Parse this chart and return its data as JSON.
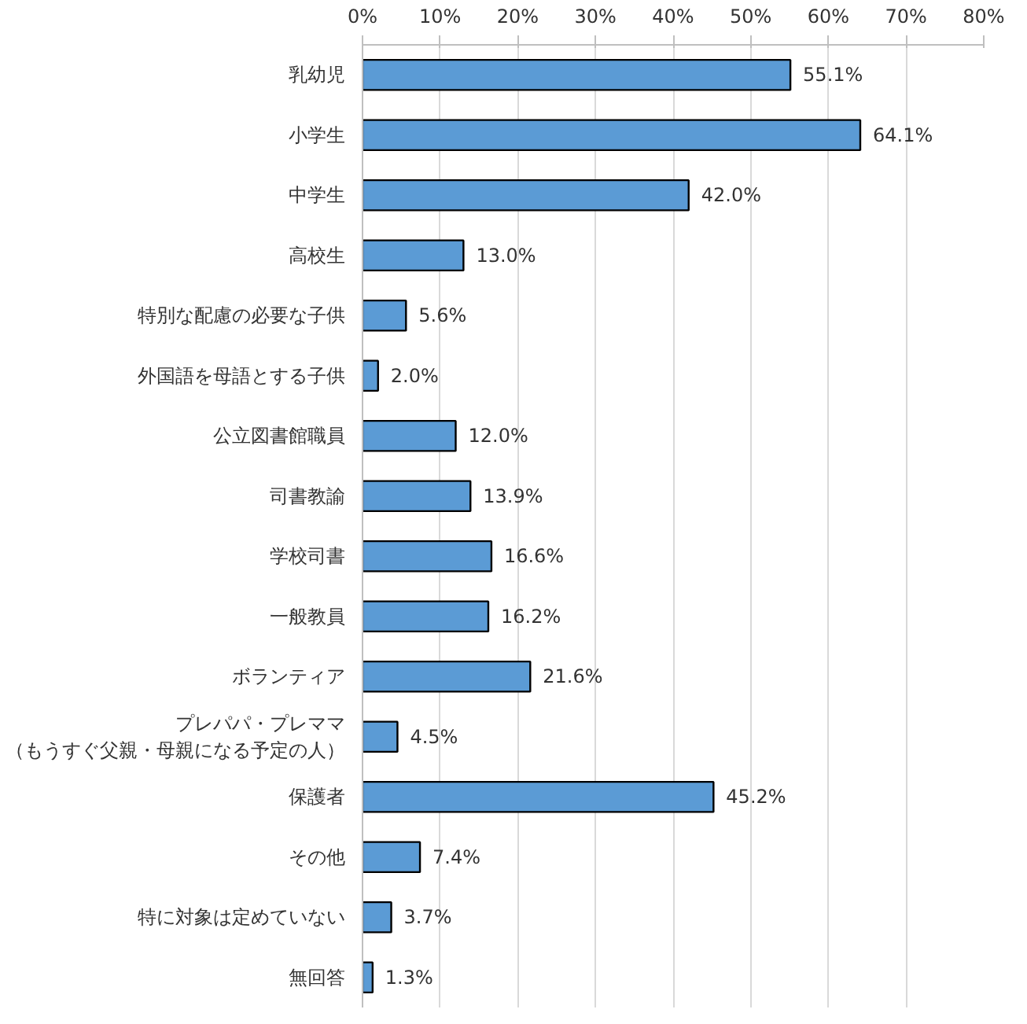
{
  "chart_data": {
    "type": "bar",
    "orientation": "horizontal",
    "categories": [
      "乳幼児",
      "小学生",
      "中学生",
      "高校生",
      "特別な配慮の必要な子供",
      "外国語を母語とする子供",
      "公立図書館職員",
      "司書教諭",
      "学校司書",
      "一般教員",
      "ボランティア",
      "プレパパ・プレママ（もうすぐ父親・母親になる予定の人）",
      "保護者",
      "その他",
      "特に対象は定めていない",
      "無回答"
    ],
    "values": [
      55.1,
      64.1,
      42.0,
      13.0,
      5.6,
      2.0,
      12.0,
      13.9,
      16.6,
      16.2,
      21.6,
      4.5,
      45.2,
      7.4,
      3.7,
      1.3
    ],
    "value_labels": [
      "55.1%",
      "64.1%",
      "42.0%",
      "13.0%",
      "5.6%",
      "2.0%",
      "12.0%",
      "13.9%",
      "16.6%",
      "16.2%",
      "21.6%",
      "4.5%",
      "45.2%",
      "7.4%",
      "3.7%",
      "1.3%"
    ],
    "color": "#5b9bd5",
    "xlim": [
      0,
      80
    ],
    "xticks": [
      {
        "value": 0,
        "label": "0%"
      },
      {
        "value": 10,
        "label": "10%"
      },
      {
        "value": 20,
        "label": "20%"
      },
      {
        "value": 30,
        "label": "30%"
      },
      {
        "value": 40,
        "label": "40%"
      },
      {
        "value": 50,
        "label": "50%"
      },
      {
        "value": 60,
        "label": "60%"
      },
      {
        "value": 70,
        "label": "70%"
      },
      {
        "value": 80,
        "label": "80%"
      }
    ],
    "grid": "x"
  }
}
